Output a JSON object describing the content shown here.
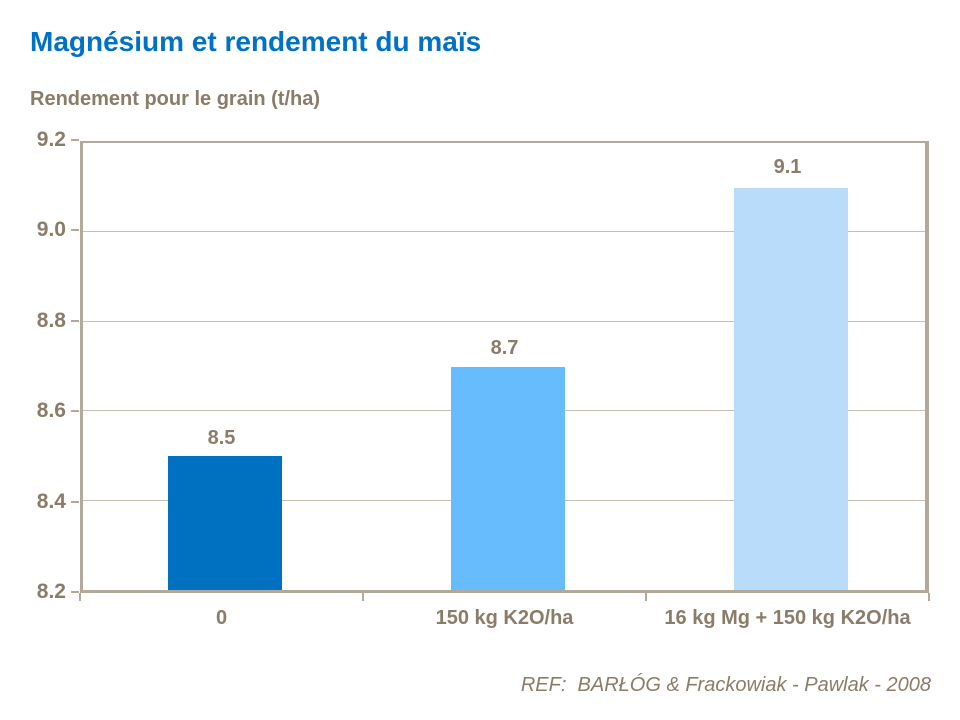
{
  "header": {
    "title": "Magnésium et rendement du maïs",
    "subtitle": "Rendement pour le grain (t/ha)"
  },
  "footer": {
    "reference": "REF:  BARŁÓG & Frackowiak - Pawlak - 2008"
  },
  "colors": {
    "title_text": "#0072C6",
    "label_text": "#8A7C68",
    "axis_border": "#B3A89A",
    "gridline": "#C8BEB2",
    "bars": [
      "#0070C0",
      "#66BCFC",
      "#BADCFB"
    ]
  },
  "chart_data": {
    "type": "bar",
    "title": "Magnésium et rendement du maïs",
    "ylabel": "Rendement pour le grain (t/ha)",
    "xlabel": "",
    "categories": [
      "0",
      "150 kg K2O/ha",
      "16 kg Mg + 150 kg K2O/ha"
    ],
    "values": [
      8.5,
      8.7,
      9.1
    ],
    "data_labels": [
      "8.5",
      "8.7",
      "9.1"
    ],
    "ylim": [
      8.2,
      9.2
    ],
    "yticks": [
      8.2,
      8.4,
      8.6,
      8.8,
      9.0,
      9.2
    ],
    "ytick_labels": [
      "8.2",
      "8.4",
      "8.6",
      "8.8",
      "9.0",
      "9.2"
    ],
    "grid": true,
    "legend": false,
    "annotation": "REF:  BARŁÓG & Frackowiak - Pawlak - 2008"
  }
}
